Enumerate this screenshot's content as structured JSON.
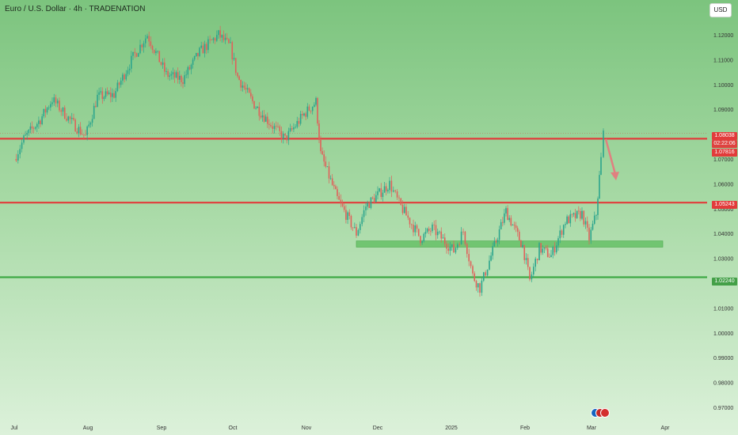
{
  "header": {
    "title": "Euro / U.S. Dollar · 4h · TRADENATION",
    "currency_button": "USD"
  },
  "price_tags": {
    "current": "1.08038",
    "countdown": "02:22:06",
    "resistance": "1.07816",
    "mid": "1.05243",
    "support": "1.02240"
  },
  "colors": {
    "red_line": "#e23b3b",
    "green_line": "#3faa45",
    "zone": "#5cbc5c",
    "arrow": "#e08080",
    "up_candle": "#2ca58d",
    "down_candle": "#e0605a"
  },
  "chart_data": {
    "type": "candlestick",
    "title": "Euro / U.S. Dollar · 4h · TRADENATION",
    "y_ticks": [
      "1.12000",
      "1.11000",
      "1.10000",
      "1.09000",
      "1.07000",
      "1.06000",
      "1.05000",
      "1.04000",
      "1.03000",
      "1.02000",
      "1.01000",
      "1.00000",
      "0.99000",
      "0.98000",
      "0.97000"
    ],
    "x_ticks": [
      "Jul",
      "Aug",
      "Sep",
      "Oct",
      "Nov",
      "Dec",
      "2025",
      "Feb",
      "Mar",
      "Apr"
    ],
    "ylim": [
      0.9685,
      1.1263
    ],
    "price_path": [
      [
        "2024-07-01",
        1.07
      ],
      [
        "2024-07-05",
        1.078
      ],
      [
        "2024-07-12",
        1.086
      ],
      [
        "2024-07-17",
        1.094
      ],
      [
        "2024-07-26",
        1.084
      ],
      [
        "2024-07-31",
        1.079
      ],
      [
        "2024-08-05",
        1.095
      ],
      [
        "2024-08-12",
        1.096
      ],
      [
        "2024-08-20",
        1.111
      ],
      [
        "2024-08-26",
        1.12
      ],
      [
        "2024-09-03",
        1.104
      ],
      [
        "2024-09-10",
        1.102
      ],
      [
        "2024-09-17",
        1.113
      ],
      [
        "2024-09-25",
        1.12
      ],
      [
        "2024-09-30",
        1.115
      ],
      [
        "2024-10-03",
        1.103
      ],
      [
        "2024-10-10",
        1.092
      ],
      [
        "2024-10-17",
        1.084
      ],
      [
        "2024-10-23",
        1.078
      ],
      [
        "2024-10-31",
        1.088
      ],
      [
        "2024-11-05",
        1.093
      ],
      [
        "2024-11-07",
        1.072
      ],
      [
        "2024-11-14",
        1.054
      ],
      [
        "2024-11-22",
        1.04
      ],
      [
        "2024-11-26",
        1.051
      ],
      [
        "2024-12-06",
        1.06
      ],
      [
        "2024-12-10",
        1.052
      ],
      [
        "2024-12-19",
        1.038
      ],
      [
        "2024-12-24",
        1.042
      ],
      [
        "2025-01-02",
        1.033
      ],
      [
        "2025-01-06",
        1.041
      ],
      [
        "2025-01-10",
        1.023
      ],
      [
        "2025-01-13",
        1.018
      ],
      [
        "2025-01-17",
        1.029
      ],
      [
        "2025-01-24",
        1.049
      ],
      [
        "2025-01-31",
        1.035
      ],
      [
        "2025-02-03",
        1.021
      ],
      [
        "2025-02-07",
        1.034
      ],
      [
        "2025-02-12",
        1.031
      ],
      [
        "2025-02-18",
        1.045
      ],
      [
        "2025-02-25",
        1.048
      ],
      [
        "2025-02-28",
        1.038
      ],
      [
        "2025-03-03",
        1.048
      ],
      [
        "2025-03-05",
        1.07
      ],
      [
        "2025-03-06",
        1.0804
      ]
    ],
    "levels": [
      {
        "value": 1.07816,
        "color": "red",
        "label": "1.07816"
      },
      {
        "value": 1.05243,
        "color": "red",
        "label": "1.05243"
      },
      {
        "value": 1.0224,
        "color": "green",
        "label": "1.02240"
      }
    ],
    "zone": {
      "from": "2024-11-22",
      "to": "2025-03-31",
      "low": 1.0345,
      "high": 1.037
    },
    "last_price": 1.08038,
    "projection": {
      "from": [
        "2025-03-07",
        1.078
      ],
      "to": [
        "2025-03-11",
        1.062
      ]
    }
  }
}
